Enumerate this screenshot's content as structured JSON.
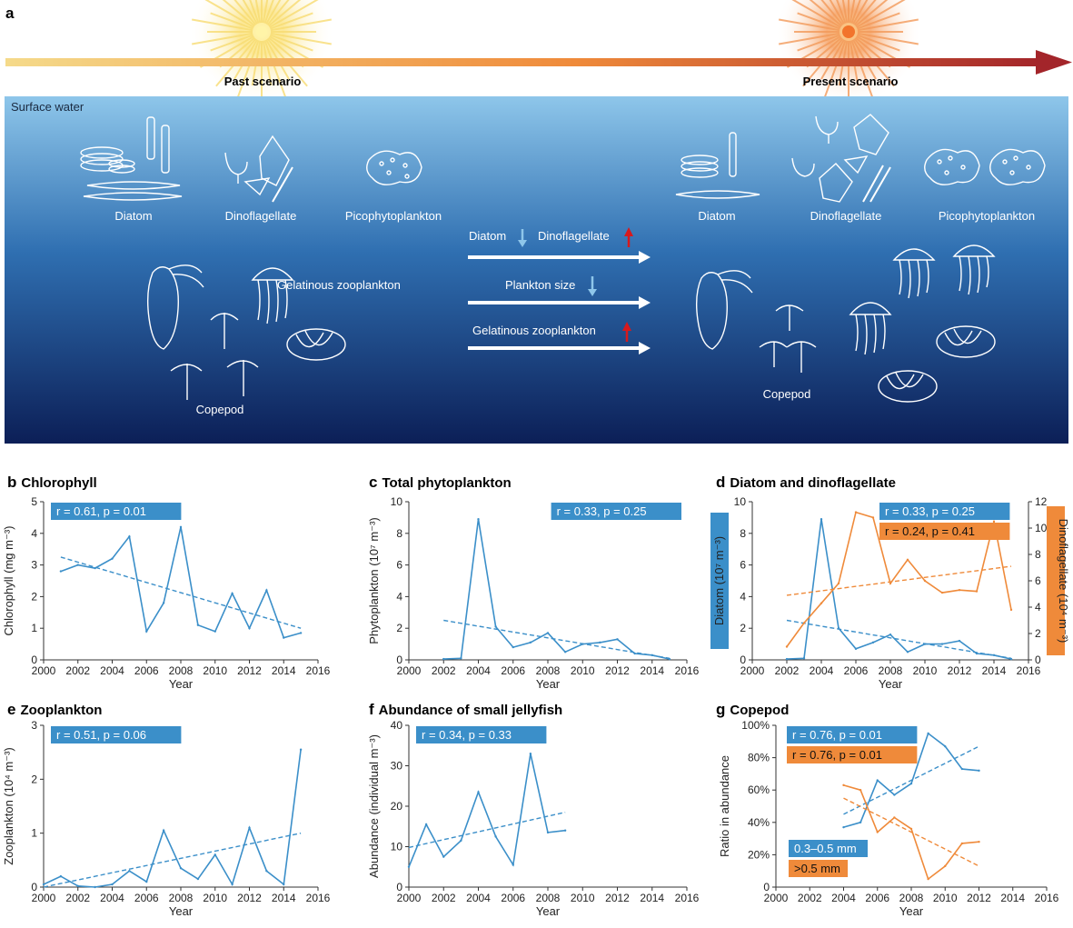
{
  "panel_a": {
    "letter": "a",
    "past_label": "Past scenario",
    "present_label": "Present scenario",
    "surface_label": "Surface water",
    "past": {
      "diatom": "Diatom",
      "dinoflagellate": "Dinoflagellate",
      "picophytoplankton": "Picophytoplankton",
      "gelatinous": "Gelatinous zooplankton",
      "copepod": "Copepod"
    },
    "present": {
      "diatom": "Diatom",
      "dinoflagellate": "Dinoflagellate",
      "picophytoplankton": "Picophytoplankton",
      "copepod": "Copepod"
    },
    "changes": {
      "diatom": "Diatom",
      "dinoflagellate": "Dinoflagellate",
      "plankton_size": "Plankton size",
      "gelatinous": "Gelatinous zooplankton"
    },
    "colors": {
      "arrow_start": "#f2d27a",
      "arrow_mid": "#ef8a3a",
      "arrow_end": "#a3252a",
      "water_top": "#8ec6ea",
      "water_bottom": "#0c1f57",
      "up_arrow": "#d7191c",
      "down_arrow": "#8ec6ea"
    }
  },
  "chart_data": [
    {
      "id": "b",
      "letter": "b",
      "title": "Chlorophyll",
      "type": "line",
      "xlabel": "Year",
      "ylabel": "Chlorophyll (mg m⁻³)",
      "xlim": [
        2000,
        2016
      ],
      "xticks": [
        2000,
        2002,
        2004,
        2006,
        2008,
        2010,
        2012,
        2014,
        2016
      ],
      "ylim": [
        0,
        5
      ],
      "yticks": [
        0,
        1,
        2,
        3,
        4,
        5
      ],
      "ytick_labels": [
        "0",
        "1",
        "2",
        "3",
        "4",
        "5"
      ],
      "series": [
        {
          "name": "Chlorophyll",
          "color": "#3b8fc9",
          "x": [
            2001,
            2002,
            2003,
            2004,
            2005,
            2006,
            2007,
            2008,
            2009,
            2010,
            2011,
            2012,
            2013,
            2014,
            2015
          ],
          "values": [
            2.8,
            3.0,
            2.9,
            3.2,
            3.9,
            0.9,
            1.8,
            4.2,
            1.1,
            0.9,
            2.1,
            1.0,
            2.2,
            0.7,
            0.85
          ],
          "trend": [
            [
              2001,
              3.25
            ],
            [
              2015,
              1.0
            ]
          ]
        }
      ],
      "stats": [
        {
          "text": "r = 0.61, p = 0.01",
          "color": "#3b8fc9"
        }
      ]
    },
    {
      "id": "c",
      "letter": "c",
      "title": "Total phytoplankton",
      "type": "line",
      "xlabel": "Year",
      "ylabel": "Phytoplankton (10⁷ m⁻³)",
      "xlim": [
        2000,
        2016
      ],
      "xticks": [
        2000,
        2002,
        2004,
        2006,
        2008,
        2010,
        2012,
        2014,
        2016
      ],
      "ylim": [
        0,
        10
      ],
      "yticks": [
        0,
        2,
        4,
        6,
        8,
        10
      ],
      "ytick_labels": [
        "0",
        "2",
        "4",
        "6",
        "8",
        "10"
      ],
      "series": [
        {
          "name": "Phytoplankton",
          "color": "#3b8fc9",
          "x": [
            2002,
            2003,
            2004,
            2005,
            2006,
            2007,
            2008,
            2009,
            2010,
            2011,
            2012,
            2013,
            2014,
            2015
          ],
          "values": [
            0.05,
            0.1,
            8.9,
            2.1,
            0.8,
            1.1,
            1.7,
            0.5,
            1.0,
            1.1,
            1.3,
            0.4,
            0.3,
            0.05
          ],
          "trend": [
            [
              2002,
              2.5
            ],
            [
              2015,
              0.1
            ]
          ]
        }
      ],
      "stats": [
        {
          "text": "r = 0.33, p = 0.25",
          "color": "#3b8fc9"
        }
      ]
    },
    {
      "id": "d",
      "letter": "d",
      "title": "Diatom and dinoflagellate",
      "type": "line",
      "xlabel": "Year",
      "ylabel": "Diatom (10⁷ m⁻³)",
      "ylabel_right": "Dinoflagellate (10⁴ m⁻³)",
      "xlim": [
        2000,
        2016
      ],
      "xticks": [
        2000,
        2002,
        2004,
        2006,
        2008,
        2010,
        2012,
        2014,
        2016
      ],
      "ylim": [
        0,
        10
      ],
      "yticks": [
        0,
        2,
        4,
        6,
        8,
        10
      ],
      "ytick_labels": [
        "0",
        "2",
        "4",
        "6",
        "8",
        "10"
      ],
      "ylim_right": [
        0,
        12
      ],
      "yticks_right": [
        0,
        2,
        4,
        6,
        8,
        10,
        12
      ],
      "ytick_labels_right": [
        "0",
        "2",
        "4",
        "6",
        "8",
        "10",
        "12"
      ],
      "series": [
        {
          "name": "Diatom",
          "color": "#3b8fc9",
          "axis": "left",
          "x": [
            2002,
            2003,
            2004,
            2005,
            2006,
            2007,
            2008,
            2009,
            2010,
            2011,
            2012,
            2013,
            2014,
            2015
          ],
          "values": [
            0.05,
            0.1,
            8.9,
            2.0,
            0.7,
            1.1,
            1.6,
            0.5,
            1.0,
            1.0,
            1.2,
            0.4,
            0.3,
            0.05
          ],
          "trend": [
            [
              2002,
              2.5
            ],
            [
              2015,
              0.1
            ]
          ]
        },
        {
          "name": "Dinoflagellate",
          "color": "#ef8a3a",
          "axis": "right",
          "x": [
            2002,
            2003,
            2004,
            2005,
            2006,
            2007,
            2008,
            2009,
            2010,
            2011,
            2012,
            2013,
            2014,
            2015
          ],
          "values": [
            1.0,
            2.8,
            4.3,
            5.8,
            11.2,
            10.8,
            5.8,
            7.6,
            6.0,
            5.1,
            5.3,
            5.2,
            10.5,
            3.8
          ],
          "trend": [
            [
              2002,
              4.9
            ],
            [
              2015,
              7.1
            ]
          ]
        }
      ],
      "stats": [
        {
          "text": "r = 0.33, p = 0.25",
          "color": "#3b8fc9"
        },
        {
          "text": "r = 0.24, p = 0.41",
          "color": "#ef8a3a"
        }
      ]
    },
    {
      "id": "e",
      "letter": "e",
      "title": "Zooplankton",
      "type": "line",
      "xlabel": "Year",
      "ylabel": "Zooplankton (10⁴ m⁻³)",
      "xlim": [
        2000,
        2016
      ],
      "xticks": [
        2000,
        2002,
        2004,
        2006,
        2008,
        2010,
        2012,
        2014,
        2016
      ],
      "ylim": [
        0,
        3
      ],
      "yticks": [
        0,
        1,
        2,
        3
      ],
      "ytick_labels": [
        "0",
        "1",
        "2",
        "3"
      ],
      "series": [
        {
          "name": "Zooplankton",
          "color": "#3b8fc9",
          "x": [
            2000,
            2001,
            2002,
            2003,
            2004,
            2005,
            2006,
            2007,
            2008,
            2009,
            2010,
            2011,
            2012,
            2013,
            2014,
            2015
          ],
          "values": [
            0.05,
            0.2,
            0.02,
            0.0,
            0.05,
            0.3,
            0.1,
            1.05,
            0.35,
            0.15,
            0.6,
            0.05,
            1.1,
            0.3,
            0.05,
            2.55
          ],
          "trend": [
            [
              2000,
              0.0
            ],
            [
              2015,
              1.0
            ]
          ]
        }
      ],
      "stats": [
        {
          "text": "r = 0.51, p = 0.06",
          "color": "#3b8fc9"
        }
      ]
    },
    {
      "id": "f",
      "letter": "f",
      "title": "Abundance of small jellyfish",
      "type": "line",
      "xlabel": "Year",
      "ylabel": "Abundance (individual m⁻³)",
      "xlim": [
        2000,
        2016
      ],
      "xticks": [
        2000,
        2002,
        2004,
        2006,
        2008,
        2010,
        2012,
        2014,
        2016
      ],
      "ylim": [
        0,
        40
      ],
      "yticks": [
        0,
        10,
        20,
        30,
        40
      ],
      "ytick_labels": [
        "0",
        "10",
        "20",
        "30",
        "40"
      ],
      "series": [
        {
          "name": "Small jellyfish",
          "color": "#3b8fc9",
          "x": [
            2000,
            2001,
            2002,
            2003,
            2004,
            2005,
            2006,
            2007,
            2008,
            2009
          ],
          "values": [
            5.0,
            15.5,
            7.5,
            11.5,
            23.5,
            12.5,
            5.5,
            33.0,
            13.5,
            14.0
          ],
          "trend": [
            [
              2000,
              9.8
            ],
            [
              2009,
              18.5
            ]
          ]
        }
      ],
      "stats": [
        {
          "text": "r = 0.34, p = 0.33",
          "color": "#3b8fc9"
        }
      ]
    },
    {
      "id": "g",
      "letter": "g",
      "title": "Copepod",
      "type": "line",
      "xlabel": "Year",
      "ylabel": "Ratio in abundance",
      "xlim": [
        2000,
        2016
      ],
      "xticks": [
        2000,
        2002,
        2004,
        2006,
        2008,
        2010,
        2012,
        2014,
        2016
      ],
      "ylim": [
        0,
        100
      ],
      "yticks": [
        0,
        20,
        40,
        60,
        80,
        100
      ],
      "ytick_labels": [
        "0",
        "20%",
        "40%",
        "60%",
        "80%",
        "100%"
      ],
      "series": [
        {
          "name": "0.3–0.5 mm",
          "color": "#3b8fc9",
          "x": [
            2004,
            2005,
            2006,
            2007,
            2008,
            2009,
            2010,
            2011,
            2012
          ],
          "values": [
            37,
            40,
            66,
            57,
            64,
            95,
            87,
            73,
            72
          ],
          "trend": [
            [
              2004,
              45
            ],
            [
              2012,
              87
            ]
          ]
        },
        {
          "name": ">0.5 mm",
          "color": "#ef8a3a",
          "x": [
            2004,
            2005,
            2006,
            2007,
            2008,
            2009,
            2010,
            2011,
            2012
          ],
          "values": [
            63,
            60,
            34,
            43,
            36,
            5,
            13,
            27,
            28
          ],
          "trend": [
            [
              2004,
              55
            ],
            [
              2012,
              13
            ]
          ]
        }
      ],
      "stats": [
        {
          "text": "r = 0.76, p = 0.01",
          "color": "#3b8fc9"
        },
        {
          "text": "r = 0.76, p = 0.01",
          "color": "#ef8a3a"
        }
      ],
      "legend": [
        {
          "text": "0.3–0.5 mm",
          "color": "#3b8fc9"
        },
        {
          "text": ">0.5 mm",
          "color": "#ef8a3a"
        }
      ]
    }
  ]
}
